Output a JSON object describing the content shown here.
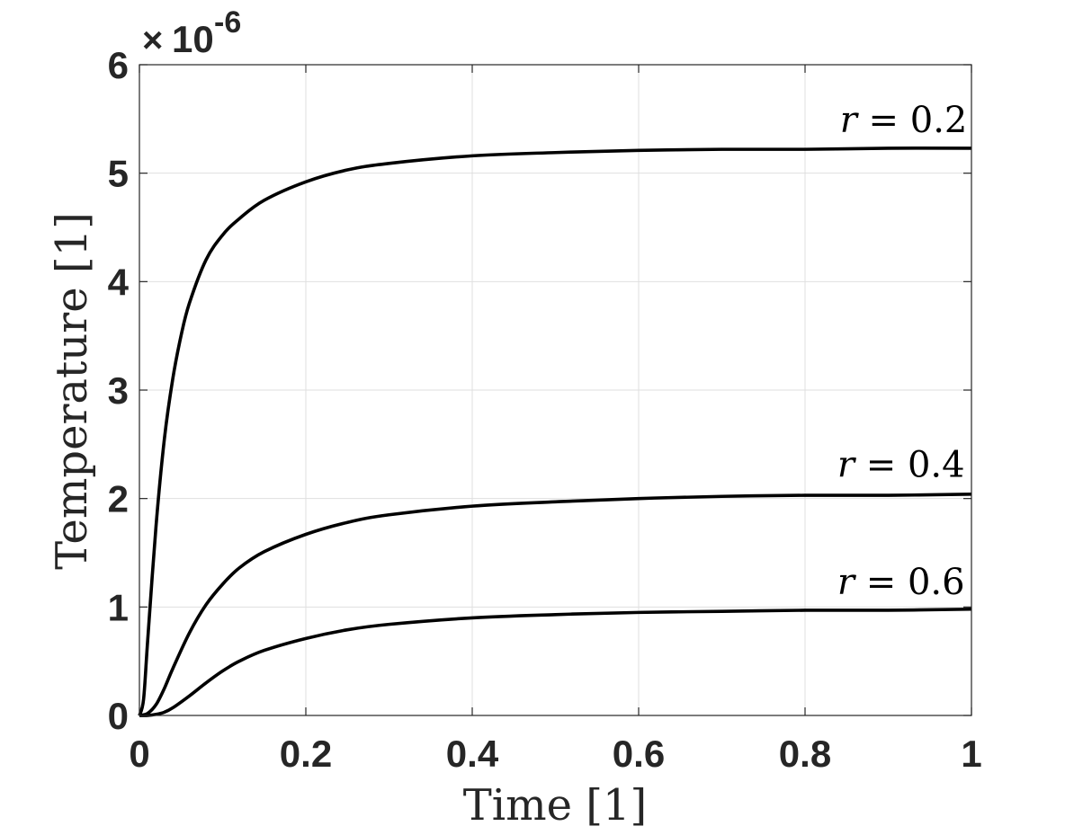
{
  "chart_data": {
    "type": "line",
    "xlabel": "Time [1]",
    "ylabel": "Temperature [1]",
    "y_multiplier": "10",
    "y_multiplier_prefix": "×",
    "y_multiplier_exponent": "-6",
    "xlim": [
      0,
      1
    ],
    "ylim": [
      0,
      6
    ],
    "x_ticks": [
      "0",
      "0.2",
      "0.4",
      "0.6",
      "0.8",
      "1"
    ],
    "y_ticks": [
      "0",
      "1",
      "2",
      "3",
      "4",
      "5",
      "6"
    ],
    "grid": true,
    "series": [
      {
        "name": "r = 0.2",
        "x": [
          0,
          0.005,
          0.01,
          0.02,
          0.03,
          0.04,
          0.05,
          0.06,
          0.08,
          0.1,
          0.12,
          0.15,
          0.2,
          0.25,
          0.3,
          0.4,
          0.5,
          0.6,
          0.7,
          0.8,
          0.9,
          1.0
        ],
        "values": [
          0,
          0.15,
          0.7,
          1.75,
          2.55,
          3.1,
          3.5,
          3.8,
          4.2,
          4.43,
          4.58,
          4.75,
          4.92,
          5.03,
          5.09,
          5.16,
          5.19,
          5.21,
          5.22,
          5.22,
          5.23,
          5.23
        ]
      },
      {
        "name": "r = 0.4",
        "x": [
          0,
          0.01,
          0.02,
          0.03,
          0.04,
          0.06,
          0.08,
          0.1,
          0.12,
          0.15,
          0.2,
          0.25,
          0.3,
          0.4,
          0.5,
          0.6,
          0.7,
          0.8,
          0.9,
          1.0
        ],
        "values": [
          0,
          0.02,
          0.1,
          0.25,
          0.43,
          0.76,
          1.02,
          1.21,
          1.36,
          1.51,
          1.67,
          1.78,
          1.85,
          1.93,
          1.97,
          2.0,
          2.02,
          2.03,
          2.03,
          2.04
        ]
      },
      {
        "name": "r = 0.6",
        "x": [
          0,
          0.01,
          0.02,
          0.03,
          0.04,
          0.06,
          0.08,
          0.1,
          0.12,
          0.15,
          0.2,
          0.25,
          0.3,
          0.4,
          0.5,
          0.6,
          0.7,
          0.8,
          0.9,
          1.0
        ],
        "values": [
          0,
          0.0,
          0.01,
          0.03,
          0.07,
          0.18,
          0.3,
          0.41,
          0.5,
          0.6,
          0.71,
          0.79,
          0.84,
          0.9,
          0.93,
          0.95,
          0.96,
          0.97,
          0.97,
          0.98
        ]
      }
    ],
    "labels": [
      {
        "symbol": "r",
        "text": " = 0.2",
        "series": 0,
        "label_x": 0.995,
        "label_y": 5.38
      },
      {
        "symbol": "r",
        "text": " = 0.4",
        "series": 1,
        "label_x": 0.992,
        "label_y": 2.2
      },
      {
        "symbol": "r",
        "text": " = 0.6",
        "series": 2,
        "label_x": 0.992,
        "label_y": 1.12
      }
    ],
    "line_color": "#000000",
    "grid_color": "#dfdfdf",
    "axis_color": "#262626"
  }
}
